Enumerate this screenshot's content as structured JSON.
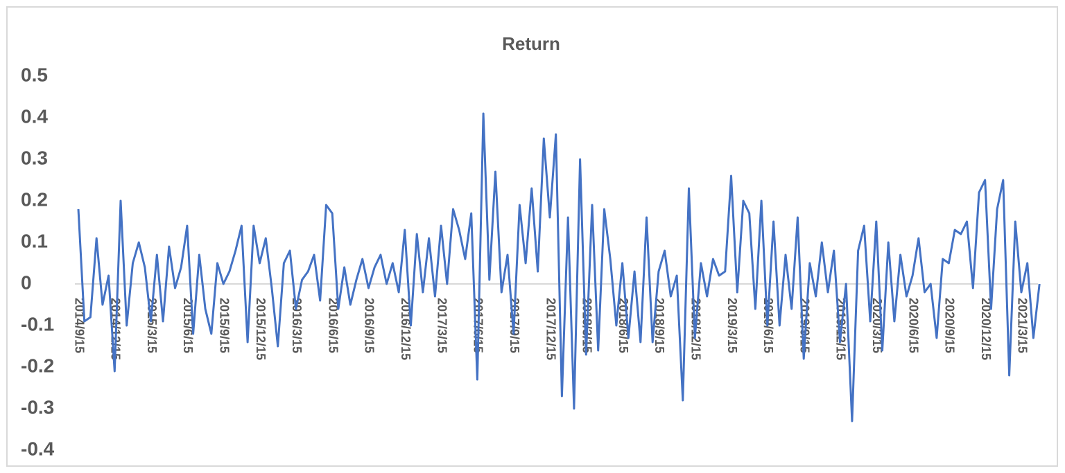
{
  "chart_data": {
    "type": "line",
    "title": "Return",
    "categories": [
      "2014/9/15",
      null,
      null,
      null,
      null,
      null,
      "2014/12/15",
      null,
      null,
      null,
      null,
      null,
      "2015/3/15",
      null,
      null,
      null,
      null,
      null,
      "2015/6/15",
      null,
      null,
      null,
      null,
      null,
      "2015/9/15",
      null,
      null,
      null,
      null,
      null,
      "2015/12/15",
      null,
      null,
      null,
      null,
      null,
      "2016/3/15",
      null,
      null,
      null,
      null,
      null,
      "2016/6/15",
      null,
      null,
      null,
      null,
      null,
      "2016/9/15",
      null,
      null,
      null,
      null,
      null,
      "2016/12/15",
      null,
      null,
      null,
      null,
      null,
      "2017/3/15",
      null,
      null,
      null,
      null,
      null,
      "2017/6/15",
      null,
      null,
      null,
      null,
      null,
      "2017/9/15",
      null,
      null,
      null,
      null,
      null,
      "2017/12/15",
      null,
      null,
      null,
      null,
      null,
      "2018/3/15",
      null,
      null,
      null,
      null,
      null,
      "2018/6/15",
      null,
      null,
      null,
      null,
      null,
      "2018/9/15",
      null,
      null,
      null,
      null,
      null,
      "2018/12/15",
      null,
      null,
      null,
      null,
      null,
      "2019/3/15",
      null,
      null,
      null,
      null,
      null,
      "2019/6/15",
      null,
      null,
      null,
      null,
      null,
      "2019/9/15",
      null,
      null,
      null,
      null,
      null,
      "2019/12/15",
      null,
      null,
      null,
      null,
      null,
      "2020/3/15",
      null,
      null,
      null,
      null,
      null,
      "2020/6/15",
      null,
      null,
      null,
      null,
      null,
      "2020/9/15",
      null,
      null,
      null,
      null,
      null,
      "2020/12/15",
      null,
      null,
      null,
      null,
      null,
      "2021/3/15",
      null,
      null,
      null
    ],
    "series": [
      {
        "name": "Return",
        "color": "#4472c4",
        "values": [
          0.18,
          -0.09,
          -0.08,
          0.11,
          -0.05,
          0.02,
          -0.21,
          0.2,
          -0.1,
          0.05,
          0.1,
          0.04,
          -0.09,
          0.07,
          -0.09,
          0.09,
          -0.01,
          0.04,
          0.14,
          -0.12,
          0.07,
          -0.06,
          -0.12,
          0.05,
          0.0,
          0.03,
          0.08,
          0.14,
          -0.14,
          0.14,
          0.05,
          0.11,
          -0.01,
          -0.15,
          0.05,
          0.08,
          -0.06,
          0.01,
          0.03,
          0.07,
          -0.04,
          0.19,
          0.17,
          -0.06,
          0.04,
          -0.05,
          0.01,
          0.06,
          -0.01,
          0.04,
          0.07,
          0.0,
          0.05,
          -0.02,
          0.13,
          -0.1,
          0.12,
          -0.02,
          0.11,
          -0.03,
          0.14,
          0.0,
          0.18,
          0.13,
          0.06,
          0.17,
          -0.23,
          0.41,
          0.01,
          0.27,
          -0.02,
          0.07,
          -0.12,
          0.19,
          0.05,
          0.23,
          0.03,
          0.35,
          0.16,
          0.36,
          -0.27,
          0.16,
          -0.3,
          0.3,
          -0.17,
          0.19,
          -0.16,
          0.18,
          0.06,
          -0.1,
          0.05,
          -0.13,
          0.03,
          -0.14,
          0.16,
          -0.14,
          0.03,
          0.08,
          -0.03,
          0.02,
          -0.28,
          0.23,
          -0.13,
          0.05,
          -0.03,
          0.06,
          0.02,
          0.03,
          0.26,
          -0.02,
          0.2,
          0.17,
          -0.06,
          0.2,
          -0.1,
          0.15,
          -0.1,
          0.07,
          -0.06,
          0.16,
          -0.18,
          0.05,
          -0.03,
          0.1,
          -0.02,
          0.08,
          -0.14,
          0.0,
          -0.33,
          0.08,
          0.14,
          -0.09,
          0.15,
          -0.16,
          0.1,
          -0.09,
          0.07,
          -0.03,
          0.02,
          0.11,
          -0.02,
          0.0,
          -0.13,
          0.06,
          0.05,
          0.13,
          0.12,
          0.15,
          -0.01,
          0.22,
          0.25,
          -0.06,
          0.18,
          0.25,
          -0.22,
          0.15,
          -0.02,
          0.05,
          -0.13,
          0.0
        ]
      }
    ],
    "ylim": [
      -0.4,
      0.5
    ],
    "yticks": [
      -0.4,
      -0.3,
      -0.2,
      -0.1,
      0,
      0.1,
      0.2,
      0.3,
      0.4,
      0.5
    ]
  }
}
